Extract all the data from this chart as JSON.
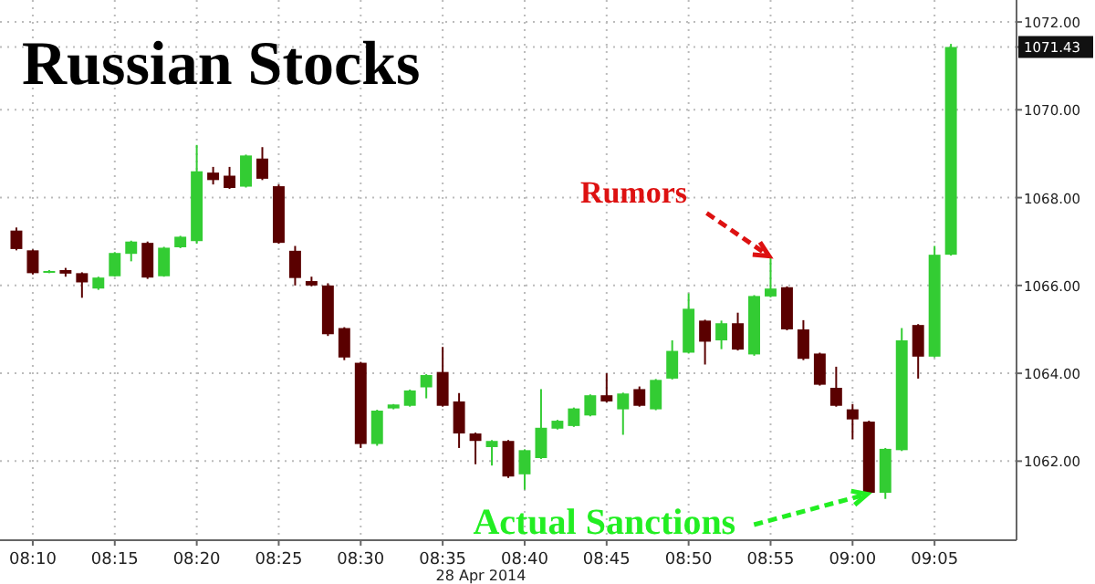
{
  "chart_data": {
    "type": "candlestick",
    "title": "Russian Stocks",
    "xlabel": "28 Apr 2014",
    "x": [
      "2014-04-28T08:09",
      "2014-04-28T08:10",
      "2014-04-28T08:11",
      "2014-04-28T08:12",
      "2014-04-28T08:13",
      "2014-04-28T08:14",
      "2014-04-28T08:15",
      "2014-04-28T08:16",
      "2014-04-28T08:17",
      "2014-04-28T08:18",
      "2014-04-28T08:19",
      "2014-04-28T08:20",
      "2014-04-28T08:21",
      "2014-04-28T08:22",
      "2014-04-28T08:23",
      "2014-04-28T08:24",
      "2014-04-28T08:25",
      "2014-04-28T08:26",
      "2014-04-28T08:27",
      "2014-04-28T08:28",
      "2014-04-28T08:29",
      "2014-04-28T08:30",
      "2014-04-28T08:31",
      "2014-04-28T08:32",
      "2014-04-28T08:33",
      "2014-04-28T08:34",
      "2014-04-28T08:35",
      "2014-04-28T08:36",
      "2014-04-28T08:37",
      "2014-04-28T08:38",
      "2014-04-28T08:39",
      "2014-04-28T08:40",
      "2014-04-28T08:41",
      "2014-04-28T08:42",
      "2014-04-28T08:43",
      "2014-04-28T08:44",
      "2014-04-28T08:45",
      "2014-04-28T08:46",
      "2014-04-28T08:47",
      "2014-04-28T08:48",
      "2014-04-28T08:49",
      "2014-04-28T08:50",
      "2014-04-28T08:51",
      "2014-04-28T08:52",
      "2014-04-28T08:53",
      "2014-04-28T08:54",
      "2014-04-28T08:55",
      "2014-04-28T08:56",
      "2014-04-28T08:57",
      "2014-04-28T08:58",
      "2014-04-28T08:59",
      "2014-04-28T09:00",
      "2014-04-28T09:01",
      "2014-04-28T09:02",
      "2014-04-28T09:03",
      "2014-04-28T09:04",
      "2014-04-28T09:05",
      "2014-04-28T09:06"
    ],
    "ohlc": [
      [
        1067.25,
        1067.32,
        1066.8,
        1066.83
      ],
      [
        1066.8,
        1066.82,
        1066.25,
        1066.28
      ],
      [
        1066.3,
        1066.35,
        1066.28,
        1066.33
      ],
      [
        1066.35,
        1066.4,
        1066.2,
        1066.27
      ],
      [
        1066.28,
        1066.3,
        1065.72,
        1066.07
      ],
      [
        1065.93,
        1066.2,
        1065.9,
        1066.18
      ],
      [
        1066.21,
        1066.76,
        1066.2,
        1066.74
      ],
      [
        1066.72,
        1067.02,
        1066.55,
        1067.0
      ],
      [
        1066.97,
        1067.0,
        1066.15,
        1066.18
      ],
      [
        1066.21,
        1066.88,
        1066.2,
        1066.86
      ],
      [
        1066.87,
        1067.13,
        1066.85,
        1067.11
      ],
      [
        1067.01,
        1069.2,
        1066.95,
        1068.6
      ],
      [
        1068.57,
        1068.7,
        1068.3,
        1068.4
      ],
      [
        1068.5,
        1068.7,
        1068.2,
        1068.22
      ],
      [
        1068.25,
        1068.98,
        1068.23,
        1068.96
      ],
      [
        1068.89,
        1069.15,
        1068.4,
        1068.43
      ],
      [
        1068.26,
        1068.3,
        1066.95,
        1066.97
      ],
      [
        1066.79,
        1066.9,
        1066.0,
        1066.17
      ],
      [
        1066.1,
        1066.2,
        1065.98,
        1066.0
      ],
      [
        1066.0,
        1066.05,
        1064.85,
        1064.89
      ],
      [
        1065.03,
        1065.05,
        1064.3,
        1064.36
      ],
      [
        1064.24,
        1064.26,
        1062.3,
        1062.39
      ],
      [
        1062.39,
        1063.17,
        1062.35,
        1063.15
      ],
      [
        1063.2,
        1063.3,
        1063.18,
        1063.29
      ],
      [
        1063.26,
        1063.63,
        1063.24,
        1063.61
      ],
      [
        1063.68,
        1063.98,
        1063.43,
        1063.96
      ],
      [
        1064.03,
        1064.6,
        1063.24,
        1063.26
      ],
      [
        1063.36,
        1063.55,
        1062.3,
        1062.63
      ],
      [
        1062.63,
        1062.65,
        1061.93,
        1062.46
      ],
      [
        1062.32,
        1062.48,
        1061.9,
        1062.46
      ],
      [
        1062.46,
        1062.48,
        1061.62,
        1061.65
      ],
      [
        1061.7,
        1062.27,
        1061.35,
        1062.25
      ],
      [
        1062.07,
        1063.64,
        1062.05,
        1062.76
      ],
      [
        1062.74,
        1062.94,
        1062.72,
        1062.92
      ],
      [
        1062.8,
        1063.22,
        1062.78,
        1063.2
      ],
      [
        1063.04,
        1063.52,
        1063.02,
        1063.5
      ],
      [
        1063.5,
        1064.0,
        1063.34,
        1063.36
      ],
      [
        1063.18,
        1063.56,
        1062.6,
        1063.54
      ],
      [
        1063.64,
        1063.7,
        1063.24,
        1063.26
      ],
      [
        1063.18,
        1063.87,
        1063.16,
        1063.85
      ],
      [
        1063.88,
        1064.75,
        1063.86,
        1064.51
      ],
      [
        1064.47,
        1065.82,
        1064.45,
        1065.47
      ],
      [
        1065.2,
        1065.22,
        1064.2,
        1064.72
      ],
      [
        1064.75,
        1065.2,
        1064.55,
        1065.14
      ],
      [
        1065.14,
        1065.38,
        1064.52,
        1064.54
      ],
      [
        1064.43,
        1065.78,
        1064.4,
        1065.76
      ],
      [
        1065.75,
        1066.65,
        1065.73,
        1065.93
      ],
      [
        1065.96,
        1065.98,
        1064.98,
        1065.0
      ],
      [
        1065.0,
        1065.21,
        1064.3,
        1064.33
      ],
      [
        1064.45,
        1064.47,
        1063.72,
        1063.74
      ],
      [
        1063.67,
        1064.15,
        1063.24,
        1063.26
      ],
      [
        1063.18,
        1063.3,
        1062.5,
        1062.95
      ],
      [
        1062.9,
        1062.92,
        1061.26,
        1061.28
      ],
      [
        1061.28,
        1062.3,
        1061.14,
        1062.28
      ],
      [
        1062.25,
        1065.03,
        1062.23,
        1064.75
      ],
      [
        1065.1,
        1065.12,
        1063.88,
        1064.38
      ],
      [
        1064.38,
        1066.9,
        1064.36,
        1066.7
      ],
      [
        1066.7,
        1071.5,
        1066.68,
        1071.43
      ]
    ],
    "colors": [
      "#5a0000",
      "#5a0000",
      "#33cc33",
      "#5a0000",
      "#5a0000",
      "#33cc33",
      "#33cc33",
      "#33cc33",
      "#5a0000",
      "#33cc33",
      "#33cc33",
      "#33cc33",
      "#5a0000",
      "#5a0000",
      "#33cc33",
      "#5a0000",
      "#5a0000",
      "#5a0000",
      "#5a0000",
      "#5a0000",
      "#5a0000",
      "#5a0000",
      "#33cc33",
      "#33cc33",
      "#33cc33",
      "#33cc33",
      "#5a0000",
      "#5a0000",
      "#5a0000",
      "#33cc33",
      "#5a0000",
      "#33cc33",
      "#33cc33",
      "#33cc33",
      "#33cc33",
      "#33cc33",
      "#5a0000",
      "#33cc33",
      "#5a0000",
      "#33cc33",
      "#33cc33",
      "#33cc33",
      "#5a0000",
      "#33cc33",
      "#5a0000",
      "#33cc33",
      "#33cc33",
      "#5a0000",
      "#5a0000",
      "#5a0000",
      "#5a0000",
      "#5a0000",
      "#5a0000",
      "#33cc33",
      "#33cc33",
      "#5a0000",
      "#33cc33",
      "#33cc33"
    ],
    "xlim": [
      "2014-04-28T08:08",
      "2014-04-28T09:10"
    ],
    "xticks": [
      {
        "value": "2014-04-28T08:10",
        "label": "08:10"
      },
      {
        "value": "2014-04-28T08:15",
        "label": "08:15"
      },
      {
        "value": "2014-04-28T08:20",
        "label": "08:20"
      },
      {
        "value": "2014-04-28T08:25",
        "label": "08:25"
      },
      {
        "value": "2014-04-28T08:30",
        "label": "08:30"
      },
      {
        "value": "2014-04-28T08:35",
        "label": "08:35"
      },
      {
        "value": "2014-04-28T08:40",
        "label": "08:40"
      },
      {
        "value": "2014-04-28T08:45",
        "label": "08:45"
      },
      {
        "value": "2014-04-28T08:50",
        "label": "08:50"
      },
      {
        "value": "2014-04-28T08:55",
        "label": "08:55"
      },
      {
        "value": "2014-04-28T09:00",
        "label": "09:00"
      },
      {
        "value": "2014-04-28T09:05",
        "label": "09:05"
      }
    ],
    "ylim": [
      1060.2,
      1072.5
    ],
    "yticks": [
      {
        "value": 1062,
        "label": "1062.00"
      },
      {
        "value": 1064,
        "label": "1064.00"
      },
      {
        "value": 1066,
        "label": "1066.00"
      },
      {
        "value": 1068,
        "label": "1068.00"
      },
      {
        "value": 1070,
        "label": "1070.00"
      },
      {
        "value": 1072,
        "label": "1072.00"
      },
      {
        "value": 1071.43,
        "label": "1071.43"
      }
    ],
    "grid": true,
    "annotations": [
      {
        "text": "Rumors",
        "x": "2014-04-28T08:55",
        "y": 1066.65
      },
      {
        "text": "Actual Sanctions",
        "x": "2014-04-28T09:01",
        "y": 1061.26
      }
    ]
  }
}
